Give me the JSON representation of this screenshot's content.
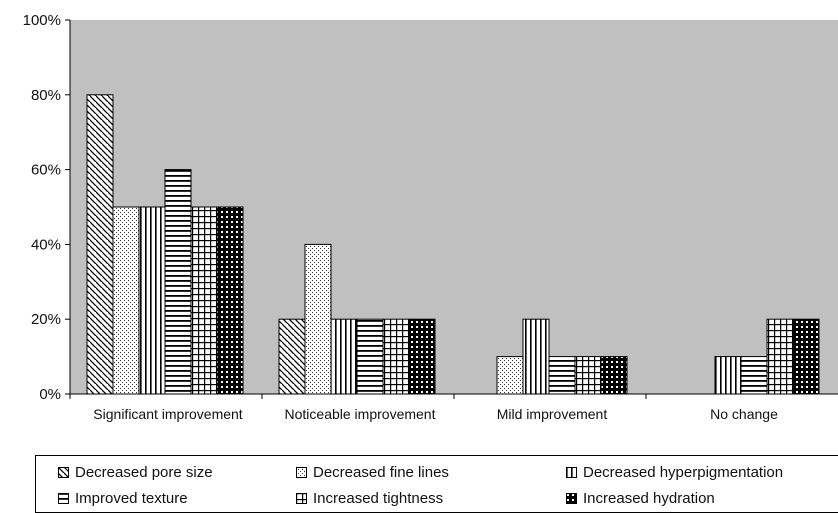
{
  "chart_data": {
    "type": "bar",
    "categories": [
      "Significant improvement",
      "Noticeable improvement",
      "Mild improvement",
      "No change"
    ],
    "series": [
      {
        "name": "Decreased pore size",
        "values": [
          80,
          20,
          0,
          0
        ],
        "pattern": "diagonal"
      },
      {
        "name": "Decreased fine lines",
        "values": [
          50,
          40,
          10,
          0
        ],
        "pattern": "dots"
      },
      {
        "name": "Decreased hyperpigmentation",
        "values": [
          50,
          20,
          20,
          10
        ],
        "pattern": "vertical"
      },
      {
        "name": "Improved texture",
        "values": [
          60,
          20,
          10,
          10
        ],
        "pattern": "horizontal"
      },
      {
        "name": "Increased tightness",
        "values": [
          50,
          20,
          10,
          20
        ],
        "pattern": "grid"
      },
      {
        "name": "Increased hydration",
        "values": [
          50,
          20,
          10,
          20
        ],
        "pattern": "checker"
      }
    ],
    "yticks": [
      "0%",
      "20%",
      "40%",
      "60%",
      "80%",
      "100%"
    ],
    "ylim": [
      0,
      100
    ],
    "plot_background": "#c0c0c0",
    "legend_position": "bottom",
    "grid": false
  }
}
